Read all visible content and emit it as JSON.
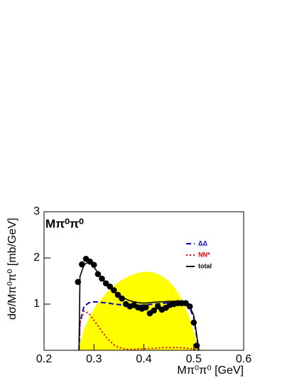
{
  "chart_data": {
    "type": "line",
    "panel_label": "Mπ⁰π⁰",
    "x_label": "Mπ⁰π⁰ [GeV]",
    "y_label": "dσ/Mπ⁰π⁰ [mb/GeV]",
    "xlim": [
      0.2,
      0.6
    ],
    "ylim": [
      0,
      3
    ],
    "xticks": [
      0.2,
      0.3,
      0.4,
      0.5,
      0.6
    ],
    "yticks": [
      1,
      2,
      3
    ],
    "legend": "top-right",
    "x": [
      0.27,
      0.272,
      0.28,
      0.29,
      0.3,
      0.31,
      0.32,
      0.33,
      0.34,
      0.35,
      0.36,
      0.37,
      0.38,
      0.39,
      0.4,
      0.41,
      0.42,
      0.43,
      0.44,
      0.45,
      0.46,
      0.47,
      0.48,
      0.49,
      0.5,
      0.505,
      0.51
    ],
    "series": [
      {
        "kind": "area",
        "color": "#ffff00",
        "values": [
          0,
          0.15,
          0.45,
          0.7,
          0.9,
          1.05,
          1.18,
          1.3,
          1.4,
          1.48,
          1.55,
          1.6,
          1.65,
          1.68,
          1.7,
          1.7,
          1.68,
          1.64,
          1.58,
          1.5,
          1.38,
          1.22,
          1.0,
          0.75,
          0.4,
          0.2,
          0
        ]
      },
      {
        "name": "ΔΔ",
        "kind": "line",
        "dash": "dashed",
        "color": "#0000cc",
        "values": [
          0,
          0.6,
          0.95,
          1.03,
          1.05,
          1.04,
          1.03,
          1.02,
          1.0,
          0.99,
          0.98,
          0.97,
          0.97,
          0.97,
          0.98,
          0.99,
          1.0,
          1.01,
          1.02,
          1.03,
          1.04,
          1.04,
          1.03,
          0.98,
          0.7,
          0.35,
          0
        ]
      },
      {
        "name": "NN*",
        "kind": "line",
        "dash": "dotted",
        "color": "#ee0000",
        "values": [
          0,
          0.6,
          0.85,
          0.8,
          0.65,
          0.5,
          0.35,
          0.22,
          0.12,
          0.06,
          0.03,
          0.02,
          0.02,
          0.03,
          0.03,
          0.04,
          0.04,
          0.05,
          0.06,
          0.06,
          0.06,
          0.06,
          0.05,
          0.04,
          0.03,
          0.01,
          0
        ]
      },
      {
        "name": "total",
        "kind": "line",
        "dash": "solid",
        "color": "#000000",
        "values": [
          0,
          1.6,
          1.85,
          1.92,
          1.8,
          1.65,
          1.5,
          1.38,
          1.28,
          1.2,
          1.13,
          1.08,
          1.05,
          1.03,
          1.02,
          1.03,
          1.04,
          1.05,
          1.05,
          1.06,
          1.06,
          1.07,
          1.06,
          1.0,
          0.75,
          0.4,
          0
        ]
      }
    ],
    "points": {
      "color": "#000000",
      "x": [
        0.268,
        0.276,
        0.284,
        0.292,
        0.3,
        0.308,
        0.316,
        0.324,
        0.332,
        0.34,
        0.348,
        0.356,
        0.364,
        0.372,
        0.38,
        0.388,
        0.396,
        0.404,
        0.412,
        0.42,
        0.428,
        0.436,
        0.444,
        0.452,
        0.46,
        0.468,
        0.476,
        0.484,
        0.492,
        0.5,
        0.506
      ],
      "values": [
        1.48,
        1.86,
        1.98,
        1.92,
        1.85,
        1.65,
        1.55,
        1.45,
        1.38,
        1.3,
        1.2,
        1.12,
        1.0,
        0.95,
        0.98,
        0.93,
        0.9,
        0.93,
        0.8,
        0.86,
        0.95,
        0.88,
        0.92,
        0.98,
        1.0,
        1.02,
        1.02,
        1.02,
        0.95,
        0.6,
        0.1
      ]
    }
  }
}
